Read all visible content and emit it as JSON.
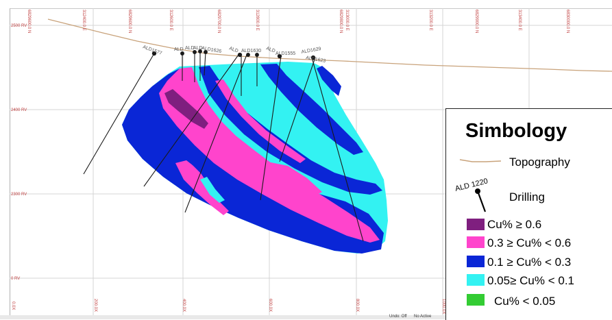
{
  "colors": {
    "cu_ge_06": "#7f1f7f",
    "cu_03_06": "#ff44cc",
    "cu_01_03": "#0a26d6",
    "cu_005_01": "#33f2f2",
    "cu_lt_005": "#33cc33",
    "topography": "#c8a27a",
    "grid": "#d4d4d4",
    "drill": "#1a1a1a"
  },
  "top_axis": [
    "6829600.0 N",
    "312400.0 E",
    "6829600.0 N",
    "312600.0 E",
    "6829700.0 N",
    "312800.0 E",
    "6829800.0 N",
    "313000.0 E",
    "313200.0 E",
    "6829900.0 N",
    "313400.0 E",
    "6830000.0 N"
  ],
  "left_axis": [
    "2500 RV",
    "2400 RV",
    "2300 RV",
    "0 RV"
  ],
  "bottom_axis": [
    "0.0X",
    "200.0X",
    "400.0X",
    "600.0X",
    "800.0X",
    "1000.0X"
  ],
  "drillholes": [
    "ALD1577",
    "ALD",
    "ALD",
    "ALD",
    "ALD1626",
    "ALD",
    "ALD1630",
    "ALD",
    "ALD1555",
    "ALD1629",
    "ALD1623"
  ],
  "status": [
    "Undo: Off",
    "No Active"
  ],
  "legend": {
    "title": "Simbology",
    "topography": "Topography",
    "sample_drill": "ALD 1220",
    "drilling": "Drilling",
    "classes": [
      {
        "label": "Cu% ≥ 0.6",
        "color": "#7f1f7f"
      },
      {
        "label": "0.3 ≥ Cu% < 0.6",
        "color": "#ff44cc"
      },
      {
        "label": "0.1 ≥ Cu% < 0.3",
        "color": "#0a26d6"
      },
      {
        "label": "0.05≥ Cu% < 0.1",
        "color": "#33f2f2"
      },
      {
        "label": "Cu% < 0.05",
        "color": "#33cc33"
      }
    ]
  }
}
